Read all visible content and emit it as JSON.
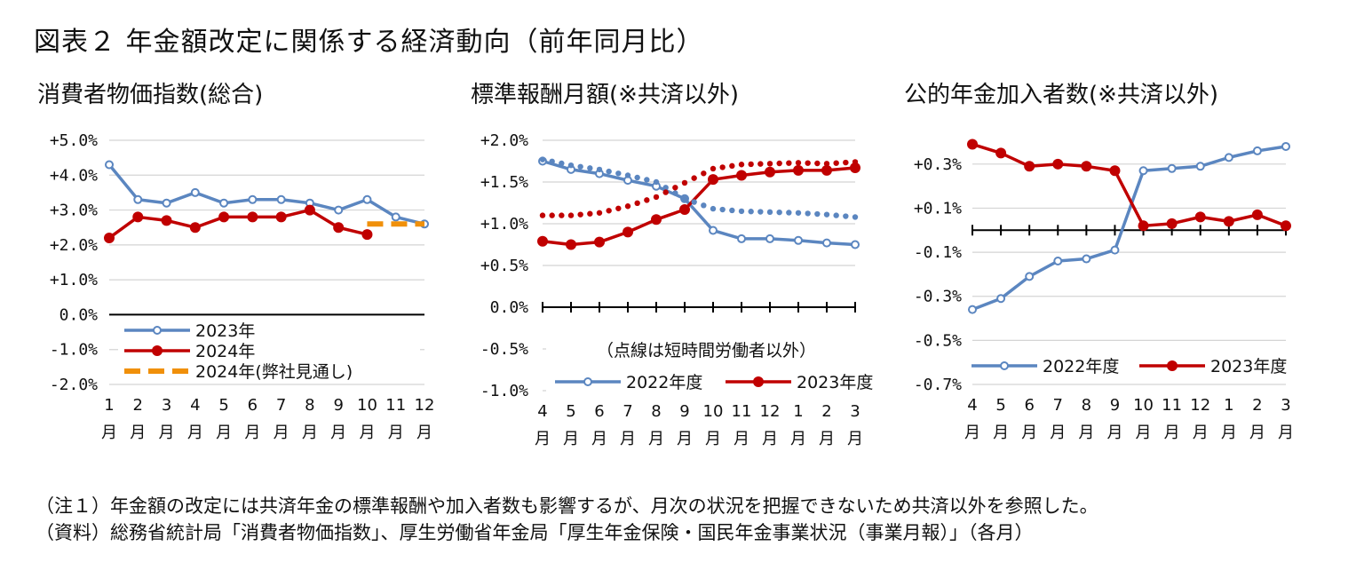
{
  "title": "図表２ 年金額改定に関係する経済動向（前年同月比）",
  "notes": [
    "（注１）年金額の改定には共済年金の標準報酬や加入者数も影響するが、月次の状況を把握できないため共済以外を参照した。",
    "（資料）総務省統計局「消費者物価指数」、厚生労働省年金局「厚生年金保険・国民年金事業状況（事業月報）」（各月）"
  ],
  "colors": {
    "blue": "#5b86c0",
    "red": "#c00000",
    "orange": "#f0900a",
    "grid": "#d4d4d4",
    "axis": "#000000"
  },
  "chart_data": [
    {
      "type": "line",
      "title": "消費者物価指数(総合)",
      "x_ticks": [
        "1",
        "2",
        "3",
        "4",
        "5",
        "6",
        "7",
        "8",
        "9",
        "10",
        "11",
        "12"
      ],
      "x_unit": "月",
      "y_ticks": [
        "+5.0%",
        "+4.0%",
        "+3.0%",
        "+2.0%",
        "+1.0%",
        "0.0%",
        "-1.0%",
        "-2.0%"
      ],
      "ylim": [
        -2.0,
        5.0
      ],
      "grid": true,
      "legend_position": "bottom-left",
      "series": [
        {
          "name": "2023年",
          "color": "#5b86c0",
          "style": "solid",
          "marker": "open-circle",
          "values": [
            4.3,
            3.3,
            3.2,
            3.5,
            3.2,
            3.3,
            3.3,
            3.2,
            3.0,
            3.3,
            2.8,
            2.6
          ]
        },
        {
          "name": "2024年",
          "color": "#c00000",
          "style": "solid",
          "marker": "filled-circle",
          "values": [
            2.2,
            2.8,
            2.7,
            2.5,
            2.8,
            2.8,
            2.8,
            3.0,
            2.5,
            2.3,
            null,
            null
          ]
        },
        {
          "name": "2024年(弊社見通し)",
          "color": "#f0900a",
          "style": "dashed",
          "marker": "none",
          "values": [
            null,
            null,
            null,
            null,
            null,
            null,
            null,
            null,
            null,
            2.6,
            2.6,
            2.6
          ]
        }
      ]
    },
    {
      "type": "line",
      "title": "標準報酬月額(※共済以外)",
      "x_ticks": [
        "4",
        "5",
        "6",
        "7",
        "8",
        "9",
        "10",
        "11",
        "12",
        "1",
        "2",
        "3"
      ],
      "x_unit": "月",
      "y_ticks": [
        "+2.0%",
        "+1.5%",
        "+1.0%",
        "+0.5%",
        "0.0%",
        "-0.5%",
        "-1.0%"
      ],
      "ylim": [
        -1.0,
        2.0
      ],
      "grid": true,
      "legend_position": "bottom",
      "annotation": "（点線は短時間労働者以外）",
      "series": [
        {
          "name": "2022年度",
          "color": "#5b86c0",
          "style": "solid",
          "marker": "open-circle",
          "values": [
            1.75,
            1.65,
            1.6,
            1.52,
            1.45,
            1.3,
            0.92,
            0.82,
            0.82,
            0.8,
            0.77,
            0.75
          ]
        },
        {
          "name": "2023年度",
          "color": "#c00000",
          "style": "solid",
          "marker": "filled-circle",
          "values": [
            0.79,
            0.75,
            0.78,
            0.9,
            1.05,
            1.17,
            1.53,
            1.58,
            1.62,
            1.64,
            1.64,
            1.67
          ]
        },
        {
          "name": "2022年度(短時間労働者以外)",
          "color": "#5b86c0",
          "style": "dotted",
          "marker": "none",
          "values": [
            1.77,
            1.7,
            1.65,
            1.58,
            1.5,
            1.3,
            1.18,
            1.15,
            1.14,
            1.13,
            1.11,
            1.08
          ]
        },
        {
          "name": "2023年度(短時間労働者以外)",
          "color": "#c00000",
          "style": "dotted",
          "marker": "none",
          "values": [
            1.1,
            1.1,
            1.13,
            1.21,
            1.32,
            1.49,
            1.66,
            1.71,
            1.72,
            1.73,
            1.72,
            1.74
          ]
        }
      ]
    },
    {
      "type": "line",
      "title": "公的年金加入者数(※共済以外)",
      "x_ticks": [
        "4",
        "5",
        "6",
        "7",
        "8",
        "9",
        "10",
        "11",
        "12",
        "1",
        "2",
        "3"
      ],
      "x_unit": "月",
      "y_ticks": [
        "+0.3%",
        "+0.1%",
        "-0.1%",
        "-0.3%",
        "-0.5%",
        "-0.7%"
      ],
      "ylim": [
        -0.7,
        0.4
      ],
      "grid": true,
      "legend_position": "bottom",
      "series": [
        {
          "name": "2022年度",
          "color": "#5b86c0",
          "style": "solid",
          "marker": "open-circle",
          "values": [
            -0.36,
            -0.31,
            -0.21,
            -0.14,
            -0.13,
            -0.09,
            0.27,
            0.28,
            0.29,
            0.33,
            0.36,
            0.38
          ]
        },
        {
          "name": "2023年度",
          "color": "#c00000",
          "style": "solid",
          "marker": "filled-circle",
          "values": [
            0.39,
            0.35,
            0.29,
            0.3,
            0.29,
            0.27,
            0.02,
            0.03,
            0.06,
            0.04,
            0.07,
            0.02
          ]
        }
      ]
    }
  ]
}
